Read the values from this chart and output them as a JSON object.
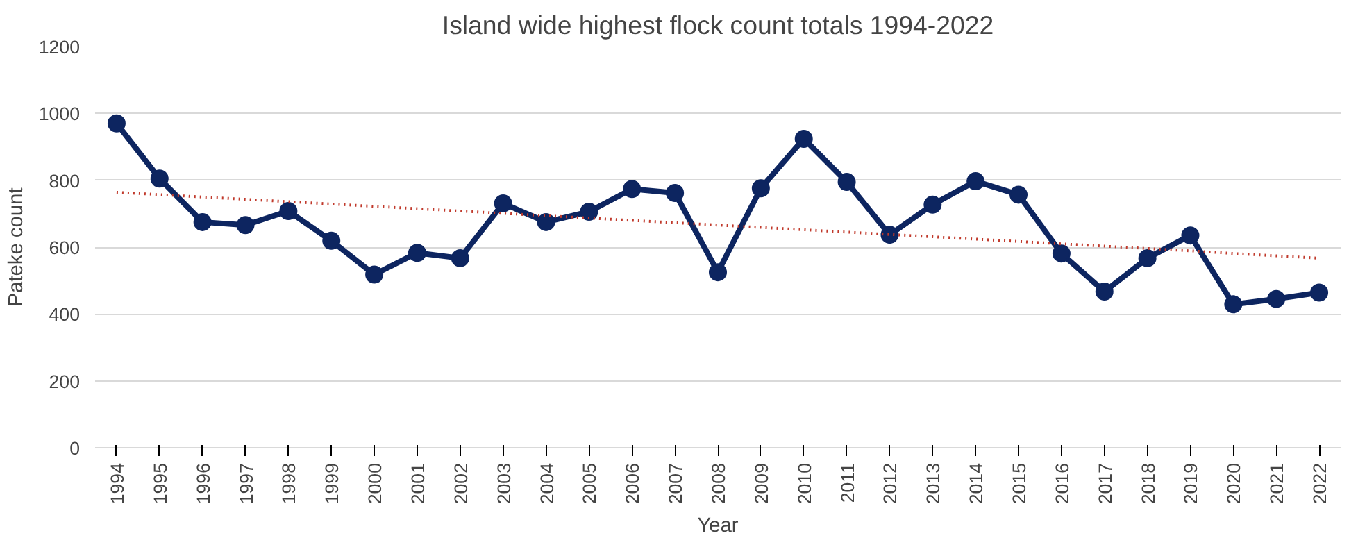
{
  "chart_data": {
    "type": "line",
    "title": "Island wide highest flock count totals 1994-2022",
    "xlabel": "Year",
    "ylabel": "Pateke count",
    "categories": [
      "1994",
      "1995",
      "1996",
      "1997",
      "1998",
      "1999",
      "2000",
      "2001",
      "2002",
      "2003",
      "2004",
      "2005",
      "2006",
      "2007",
      "2008",
      "2009",
      "2010",
      "2011",
      "2012",
      "2013",
      "2014",
      "2015",
      "2016",
      "2017",
      "2018",
      "2019",
      "2020",
      "2021",
      "2022"
    ],
    "series": [
      {
        "color": "#0d2560",
        "marker": "circle",
        "line_style": "solid",
        "values": [
          970,
          805,
          675,
          666,
          708,
          619,
          518,
          583,
          567,
          731,
          675,
          706,
          774,
          762,
          525,
          776,
          924,
          795,
          637,
          727,
          797,
          757,
          581,
          467,
          567,
          635,
          429,
          445,
          464
        ]
      },
      {
        "type": "line",
        "color": "#c0392b",
        "marker": "none",
        "line_style": "dotted",
        "values": [
          764,
          757,
          750,
          743,
          736,
          729,
          722,
          715,
          708,
          701,
          694,
          687,
          680,
          673,
          666,
          659,
          652,
          645,
          638,
          631,
          624,
          617,
          610,
          603,
          596,
          589,
          581,
          574,
          567
        ]
      }
    ],
    "ylim": [
      0,
      1200
    ],
    "yticks": [
      0,
      200,
      400,
      600,
      800,
      1000,
      1200
    ],
    "grid": "y"
  }
}
